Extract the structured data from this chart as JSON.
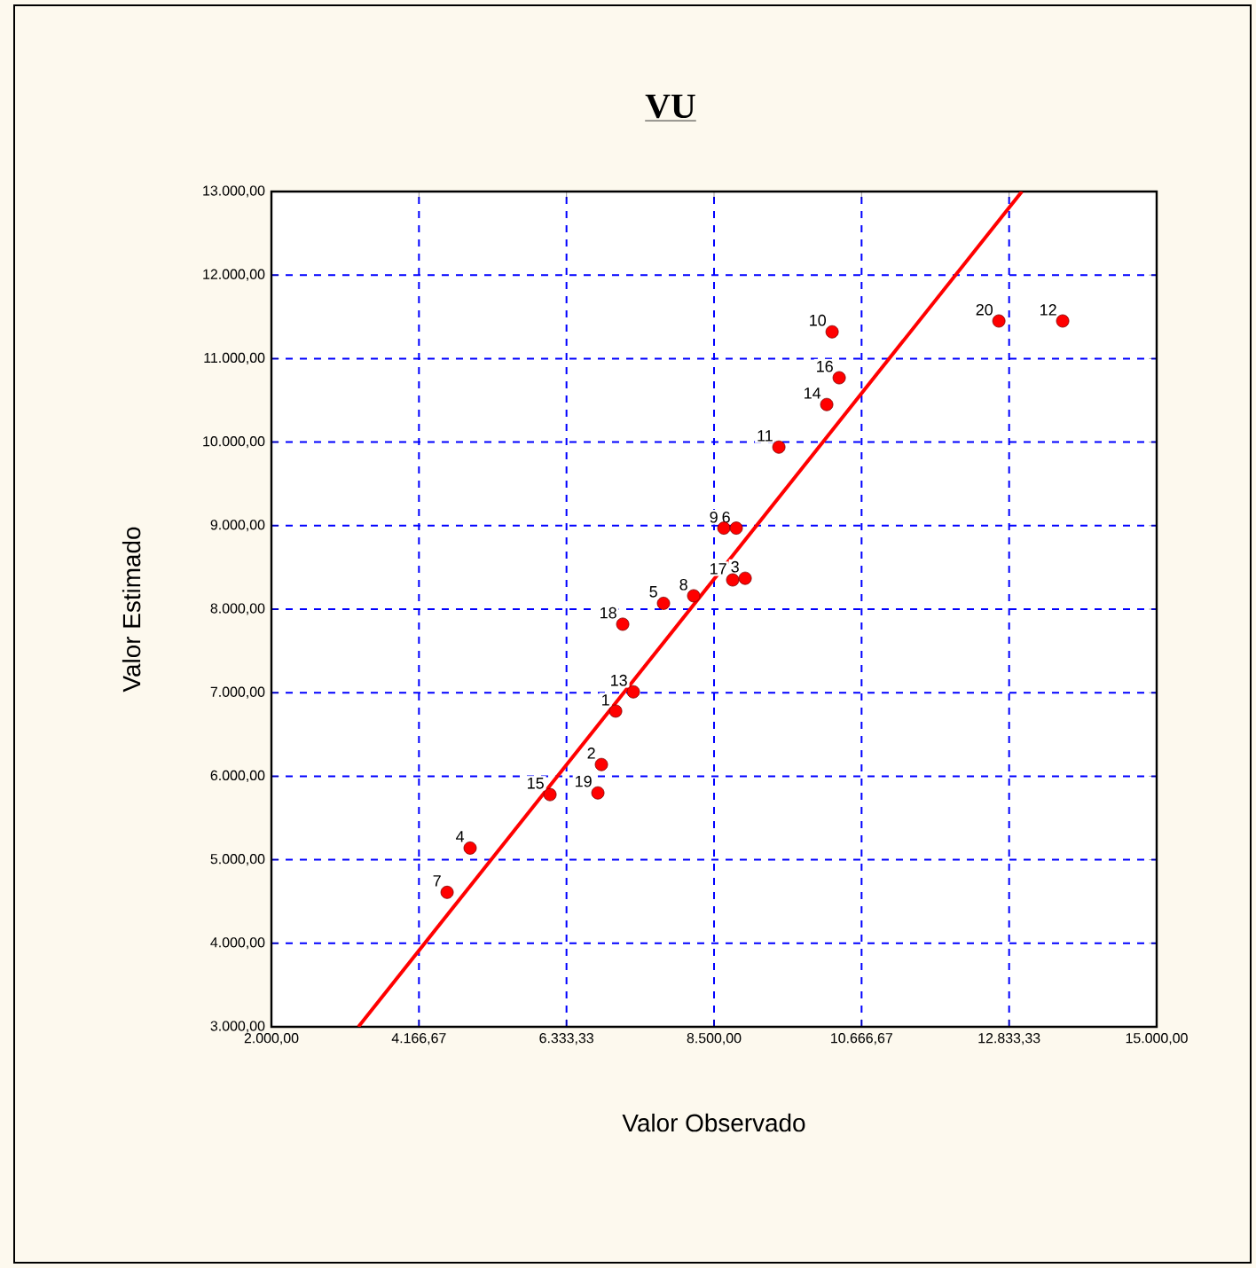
{
  "chart_data": {
    "type": "scatter",
    "title": "VU",
    "xlabel": "Valor Observado",
    "ylabel": "Valor Estimado",
    "x": [
      4580,
      4918,
      6091,
      6794,
      6846,
      7055,
      7315,
      7159,
      7758,
      8201,
      8774,
      8957,
      8644,
      8826,
      9452,
      10155,
      10338,
      10234,
      12683,
      13620
    ],
    "series": [
      {
        "color": "#ff0000",
        "marker": "circle",
        "values": [
          4610,
          5140,
          5780,
          5800,
          6140,
          6780,
          7010,
          7820,
          8070,
          8160,
          8350,
          8370,
          8970,
          8970,
          9940,
          10450,
          10770,
          11320,
          11450,
          11450
        ]
      },
      {
        "type": "line",
        "color": "#ff0000",
        "line_style": "solid",
        "x": [
          3277,
          13021
        ],
        "values": [
          3000,
          13000
        ]
      }
    ],
    "xlim": [
      2000,
      15000
    ],
    "ylim": [
      3000,
      13000
    ],
    "xticks": [
      {
        "value": 2000,
        "label": "2.000,00"
      },
      {
        "value": 4166.67,
        "label": "4.166,67"
      },
      {
        "value": 6333.33,
        "label": "6.333,33"
      },
      {
        "value": 8500,
        "label": "8.500,00"
      },
      {
        "value": 10666.67,
        "label": "10.666,67"
      },
      {
        "value": 12833.33,
        "label": "12.833,33"
      },
      {
        "value": 15000,
        "label": "15.000,00"
      }
    ],
    "yticks": [
      {
        "value": 3000,
        "label": "3.000,00"
      },
      {
        "value": 4000,
        "label": "4.000,00"
      },
      {
        "value": 5000,
        "label": "5.000,00"
      },
      {
        "value": 6000,
        "label": "6.000,00"
      },
      {
        "value": 7000,
        "label": "7.000,00"
      },
      {
        "value": 8000,
        "label": "8.000,00"
      },
      {
        "value": 9000,
        "label": "9.000,00"
      },
      {
        "value": 10000,
        "label": "10.000,00"
      },
      {
        "value": 11000,
        "label": "11.000,00"
      },
      {
        "value": 12000,
        "label": "12.000,00"
      },
      {
        "value": 13000,
        "label": "13.000,00"
      }
    ],
    "grid": true,
    "annotations": [
      {
        "text": "7",
        "x": 4580,
        "y": 4614
      },
      {
        "text": "4",
        "x": 4918,
        "y": 5144
      },
      {
        "text": "15",
        "x": 6091,
        "y": 5781
      },
      {
        "text": "19",
        "x": 6794,
        "y": 5803
      },
      {
        "text": "2",
        "x": 6846,
        "y": 6142
      },
      {
        "text": "1",
        "x": 7055,
        "y": 6779
      },
      {
        "text": "13",
        "x": 7315,
        "y": 7013
      },
      {
        "text": "18",
        "x": 7159,
        "y": 7820
      },
      {
        "text": "5",
        "x": 7758,
        "y": 8074
      },
      {
        "text": "8",
        "x": 8201,
        "y": 8159
      },
      {
        "text": "17",
        "x": 8774,
        "y": 8350
      },
      {
        "text": "3",
        "x": 8957,
        "y": 8372
      },
      {
        "text": "9",
        "x": 8644,
        "y": 8966
      },
      {
        "text": "6",
        "x": 8826,
        "y": 8966
      },
      {
        "text": "11",
        "x": 9452,
        "y": 9943
      },
      {
        "text": "14",
        "x": 10155,
        "y": 10452
      },
      {
        "text": "16",
        "x": 10338,
        "y": 10771
      },
      {
        "text": "10",
        "x": 10234,
        "y": 11323
      },
      {
        "text": "20",
        "x": 12683,
        "y": 11450
      },
      {
        "text": "12",
        "x": 13620,
        "y": 11450
      }
    ]
  }
}
